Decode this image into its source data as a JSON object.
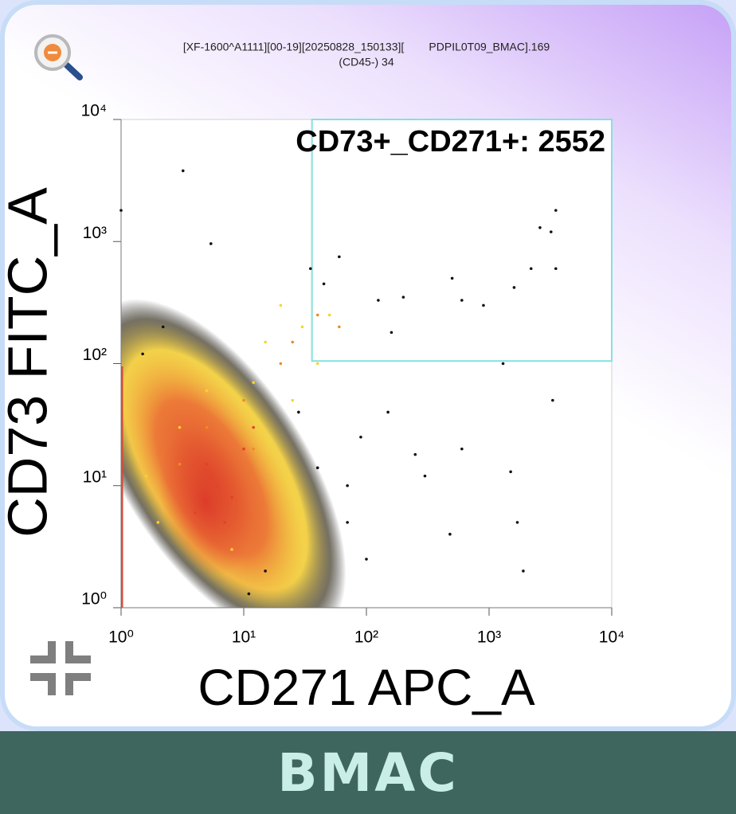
{
  "chart_data": {
    "type": "scatter",
    "title": "[XF-1600^A1111][00-19][20250828_150133][        PDPIL0T09_BMAC].169",
    "subtitle": "(CD45-) 34",
    "x_label": "CD271 APC_A",
    "y_label": "CD73 FITC_A",
    "xlog": true,
    "ylog": true,
    "xlim": [
      1,
      10000
    ],
    "ylim": [
      1,
      10000
    ],
    "xticks": [
      {
        "value": 1,
        "label": "10⁰"
      },
      {
        "value": 10,
        "label": "10¹"
      },
      {
        "value": 100,
        "label": "10²"
      },
      {
        "value": 1000,
        "label": "10³"
      },
      {
        "value": 10000,
        "label": "10⁴"
      }
    ],
    "yticks": [
      {
        "value": 1,
        "label": "10⁰"
      },
      {
        "value": 10,
        "label": "10¹"
      },
      {
        "value": 100,
        "label": "10²"
      },
      {
        "value": 1000,
        "label": "10³"
      },
      {
        "value": 10000,
        "label": "10⁴"
      }
    ],
    "gate": {
      "label": "CD73+_CD271+: 2552",
      "x": [
        36,
        10000
      ],
      "y": [
        105,
        10000
      ],
      "color": "#86e0e0"
    },
    "series": [
      {
        "color": "#111111",
        "x": [
          3.2,
          1.0,
          5.4,
          60,
          125,
          200,
          500,
          600,
          900,
          1600,
          2200,
          2600,
          3200,
          3500,
          3500,
          3300,
          1300,
          1700,
          1500,
          600,
          300,
          250,
          90,
          70,
          480,
          100,
          1900,
          45,
          160,
          35,
          28,
          150,
          70,
          40,
          15,
          11,
          2.2,
          1.5
        ],
        "y": [
          3800,
          1800,
          960,
          750,
          330,
          350,
          500,
          330,
          300,
          420,
          600,
          1300,
          1200,
          1800,
          600,
          50,
          100,
          5,
          13,
          20,
          12,
          18,
          25,
          5,
          4,
          2.5,
          2,
          450,
          180,
          600,
          40,
          40,
          10,
          14,
          2,
          1.3,
          200,
          120
        ]
      },
      {
        "color": "#f5d431",
        "x": [
          5,
          20,
          30,
          15,
          40,
          3,
          8,
          2,
          25,
          12,
          50,
          1.6
        ],
        "y": [
          60,
          300,
          200,
          150,
          100,
          30,
          3,
          5,
          50,
          70,
          250,
          12
        ]
      },
      {
        "color": "#ee8a2a",
        "x": [
          40,
          20,
          10,
          5,
          3,
          12,
          60,
          25
        ],
        "y": [
          250,
          100,
          50,
          30,
          15,
          20,
          200,
          150
        ]
      },
      {
        "color": "#e0432a",
        "x": [
          6,
          5,
          8,
          4,
          10,
          7,
          12
        ],
        "y": [
          10,
          15,
          8,
          6,
          20,
          5,
          30
        ]
      }
    ]
  },
  "footer": "BMAC"
}
